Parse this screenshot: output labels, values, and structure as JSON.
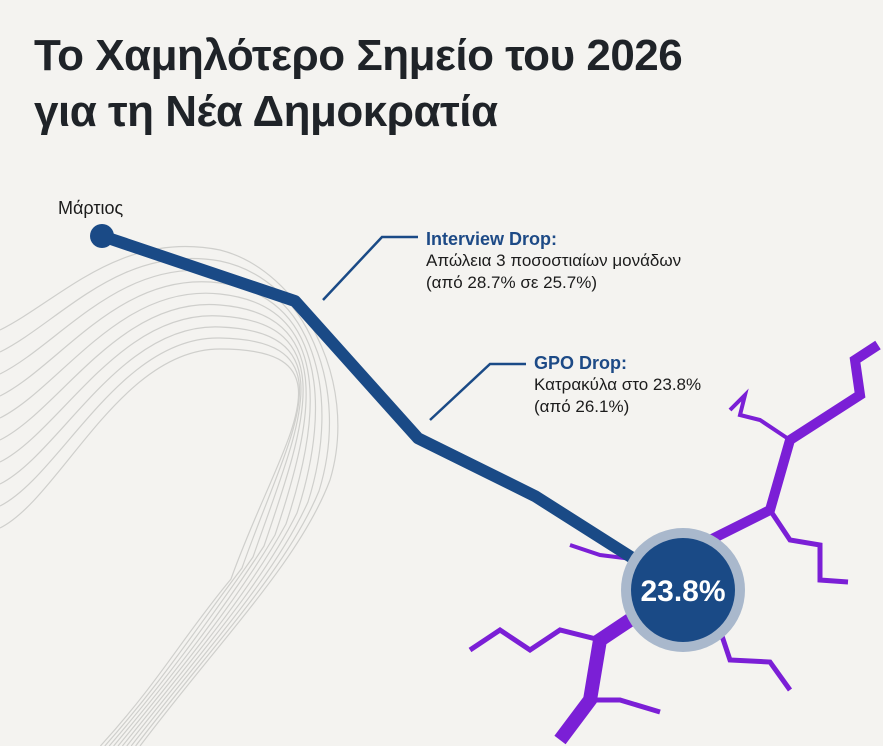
{
  "title_lines": [
    "Το Χαμηλότερο Σημείο του 2026",
    "για τη Νέα Δημοκρατία"
  ],
  "colors": {
    "line": "#1a4a86",
    "crack": "#7b1fd6",
    "halo": "#a9b8cc",
    "background": "#f4f3f0",
    "title": "#1f2328"
  },
  "chart_data": {
    "type": "line",
    "title": "Το Χαμηλότερο Σημείο του 2026 για τη Νέα Δημοκρατία",
    "x": [
      0,
      1,
      2,
      3,
      4
    ],
    "x_tick_labels": [
      "Μάρτιος"
    ],
    "values": [
      28.7,
      27.8,
      25.9,
      25.1,
      23.8
    ],
    "grid": false,
    "final_value_label": "23.8%",
    "annotations": [
      {
        "heading": "Interview Drop:",
        "line1": "Απώλεια 3 ποσοστιαίων μονάδων",
        "line2": "(από 28.7% σε 25.7%)"
      },
      {
        "heading": "GPO Drop:",
        "line1": "Κατρακύλα στο 23.8%",
        "line2": "(από 26.1%)"
      }
    ]
  }
}
